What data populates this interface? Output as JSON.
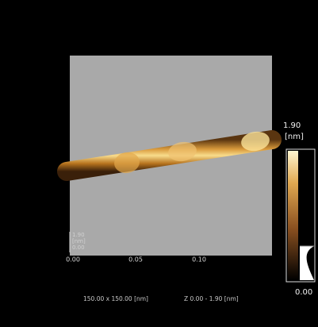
{
  "image": {
    "scale_bar": {
      "max": "1.90",
      "unit": "[nm]",
      "min": "0.00"
    },
    "z_axis": {
      "max": "1.90",
      "unit": "[nm]",
      "min": "0.00"
    },
    "x_axis": {
      "ticks": [
        "0.00",
        "0.05",
        "0.10"
      ]
    },
    "caption": {
      "size": "150.00 x 150.00 [nm]",
      "z_range": "Z 0.00 - 1.90 [nm]"
    }
  }
}
